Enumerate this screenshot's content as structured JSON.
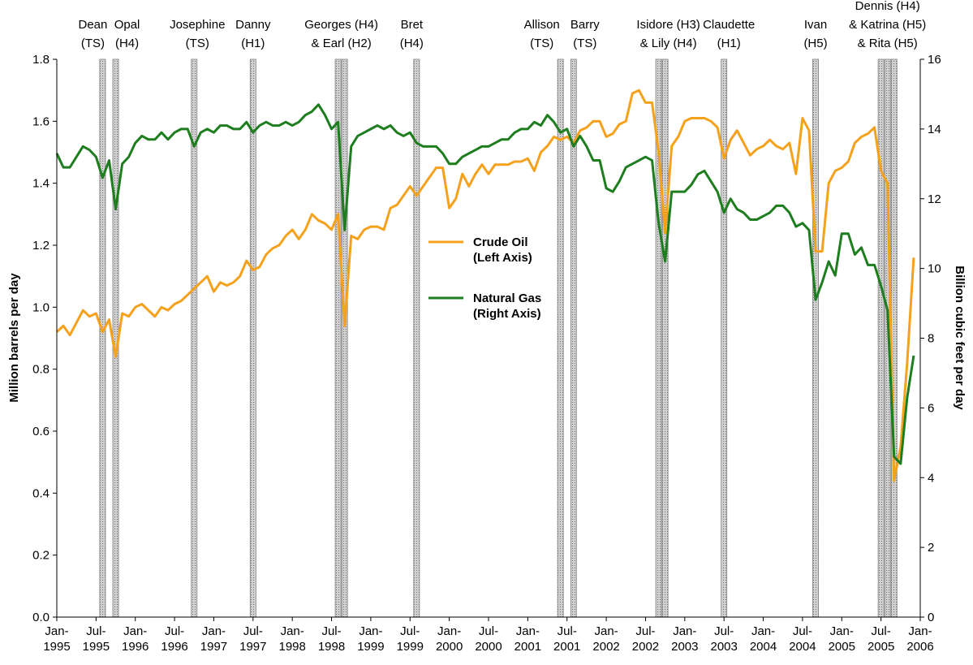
{
  "chart_data": {
    "type": "line",
    "y_label": "Million barrels per day",
    "y2_label": "Billion cubic feet per day",
    "xlim": [
      "1995-01",
      "2006-01"
    ],
    "xticks": [
      {
        "value": "1995-01",
        "label": "Jan-\n1995"
      },
      {
        "value": "1995-07",
        "label": "Jul-\n1995"
      },
      {
        "value": "1996-01",
        "label": "Jan-\n1996"
      },
      {
        "value": "1996-07",
        "label": "Jul-\n1996"
      },
      {
        "value": "1997-01",
        "label": "Jan-\n1997"
      },
      {
        "value": "1997-07",
        "label": "Jul-\n1997"
      },
      {
        "value": "1998-01",
        "label": "Jan-\n1998"
      },
      {
        "value": "1998-07",
        "label": "Jul-\n1998"
      },
      {
        "value": "1999-01",
        "label": "Jan-\n1999"
      },
      {
        "value": "1999-07",
        "label": "Jul-\n1999"
      },
      {
        "value": "2000-01",
        "label": "Jan-\n2000"
      },
      {
        "value": "2000-07",
        "label": "Jul-\n2000"
      },
      {
        "value": "2001-01",
        "label": "Jan-\n2001"
      },
      {
        "value": "2001-07",
        "label": "Jul-\n2001"
      },
      {
        "value": "2002-01",
        "label": "Jan-\n2002"
      },
      {
        "value": "2002-07",
        "label": "Jul-\n2002"
      },
      {
        "value": "2003-01",
        "label": "Jan-\n2003"
      },
      {
        "value": "2003-07",
        "label": "Jul-\n2003"
      },
      {
        "value": "2004-01",
        "label": "Jan-\n2004"
      },
      {
        "value": "2004-07",
        "label": "Jul-\n2004"
      },
      {
        "value": "2005-01",
        "label": "Jan-\n2005"
      },
      {
        "value": "2005-07",
        "label": "Jul-\n2005"
      },
      {
        "value": "2006-01",
        "label": "Jan-\n2006"
      }
    ],
    "ylim": [
      0,
      1.8
    ],
    "yticks": [
      {
        "value": 0,
        "label": "0.0"
      },
      0.2,
      0.4,
      0.6,
      0.8,
      {
        "value": 1,
        "label": "1.0"
      },
      1.2,
      1.4,
      1.6,
      1.8
    ],
    "y2lim": [
      0,
      16
    ],
    "y2ticks": [
      0,
      2,
      4,
      6,
      8,
      10,
      12,
      14,
      16
    ],
    "x": [
      "1995-01",
      "1995-02",
      "1995-03",
      "1995-04",
      "1995-05",
      "1995-06",
      "1995-07",
      "1995-08",
      "1995-09",
      "1995-10",
      "1995-11",
      "1995-12",
      "1996-01",
      "1996-02",
      "1996-03",
      "1996-04",
      "1996-05",
      "1996-06",
      "1996-07",
      "1996-08",
      "1996-09",
      "1996-10",
      "1996-11",
      "1996-12",
      "1997-01",
      "1997-02",
      "1997-03",
      "1997-04",
      "1997-05",
      "1997-06",
      "1997-07",
      "1997-08",
      "1997-09",
      "1997-10",
      "1997-11",
      "1997-12",
      "1998-01",
      "1998-02",
      "1998-03",
      "1998-04",
      "1998-05",
      "1998-06",
      "1998-07",
      "1998-08",
      "1998-09",
      "1998-10",
      "1998-11",
      "1998-12",
      "1999-01",
      "1999-02",
      "1999-03",
      "1999-04",
      "1999-05",
      "1999-06",
      "1999-07",
      "1999-08",
      "1999-09",
      "1999-10",
      "1999-11",
      "1999-12",
      "2000-01",
      "2000-02",
      "2000-03",
      "2000-04",
      "2000-05",
      "2000-06",
      "2000-07",
      "2000-08",
      "2000-09",
      "2000-10",
      "2000-11",
      "2000-12",
      "2001-01",
      "2001-02",
      "2001-03",
      "2001-04",
      "2001-05",
      "2001-06",
      "2001-07",
      "2001-08",
      "2001-09",
      "2001-10",
      "2001-11",
      "2001-12",
      "2002-01",
      "2002-02",
      "2002-03",
      "2002-04",
      "2002-05",
      "2002-06",
      "2002-07",
      "2002-08",
      "2002-09",
      "2002-10",
      "2002-11",
      "2002-12",
      "2003-01",
      "2003-02",
      "2003-03",
      "2003-04",
      "2003-05",
      "2003-06",
      "2003-07",
      "2003-08",
      "2003-09",
      "2003-10",
      "2003-11",
      "2003-12",
      "2004-01",
      "2004-02",
      "2004-03",
      "2004-04",
      "2004-05",
      "2004-06",
      "2004-07",
      "2004-08",
      "2004-09",
      "2004-10",
      "2004-11",
      "2004-12",
      "2005-01",
      "2005-02",
      "2005-03",
      "2005-04",
      "2005-05",
      "2005-06",
      "2005-07",
      "2005-08",
      "2005-09",
      "2005-10",
      "2005-11",
      "2005-12"
    ],
    "series": [
      {
        "name": "Crude Oil\n(Left Axis)",
        "color": "#f5a11c",
        "axis": "y",
        "values": [
          0.92,
          0.94,
          0.91,
          0.95,
          0.99,
          0.97,
          0.98,
          0.92,
          0.96,
          0.84,
          0.98,
          0.97,
          1.0,
          1.01,
          0.99,
          0.97,
          1.0,
          0.99,
          1.01,
          1.02,
          1.04,
          1.06,
          1.08,
          1.1,
          1.05,
          1.08,
          1.07,
          1.08,
          1.1,
          1.15,
          1.12,
          1.13,
          1.17,
          1.19,
          1.2,
          1.23,
          1.25,
          1.22,
          1.25,
          1.3,
          1.28,
          1.27,
          1.25,
          1.3,
          0.94,
          1.23,
          1.22,
          1.25,
          1.26,
          1.26,
          1.25,
          1.32,
          1.33,
          1.36,
          1.39,
          1.36,
          1.39,
          1.42,
          1.45,
          1.45,
          1.32,
          1.35,
          1.43,
          1.39,
          1.43,
          1.46,
          1.43,
          1.46,
          1.46,
          1.46,
          1.47,
          1.47,
          1.48,
          1.44,
          1.5,
          1.52,
          1.55,
          1.54,
          1.55,
          1.53,
          1.57,
          1.58,
          1.6,
          1.6,
          1.55,
          1.56,
          1.59,
          1.6,
          1.69,
          1.7,
          1.66,
          1.66,
          1.5,
          1.24,
          1.52,
          1.55,
          1.6,
          1.61,
          1.61,
          1.61,
          1.6,
          1.58,
          1.48,
          1.54,
          1.57,
          1.53,
          1.49,
          1.51,
          1.52,
          1.54,
          1.52,
          1.51,
          1.53,
          1.43,
          1.61,
          1.57,
          1.18,
          1.18,
          1.4,
          1.44,
          1.45,
          1.47,
          1.53,
          1.55,
          1.56,
          1.58,
          1.44,
          1.4,
          0.44,
          0.55,
          0.82,
          1.16
        ]
      },
      {
        "name": "Natural Gas\n(Right Axis)",
        "color": "#1e7d1e",
        "axis": "y2",
        "values": [
          13.3,
          12.9,
          12.9,
          13.2,
          13.5,
          13.4,
          13.2,
          12.6,
          13.1,
          11.7,
          13.0,
          13.2,
          13.6,
          13.8,
          13.7,
          13.7,
          13.9,
          13.7,
          13.9,
          14.0,
          14.0,
          13.5,
          13.9,
          14.0,
          13.9,
          14.1,
          14.1,
          14.0,
          14.0,
          14.2,
          13.9,
          14.1,
          14.2,
          14.1,
          14.1,
          14.2,
          14.1,
          14.2,
          14.4,
          14.5,
          14.7,
          14.4,
          14.0,
          14.2,
          11.1,
          13.5,
          13.8,
          13.9,
          14.0,
          14.1,
          14.0,
          14.1,
          13.9,
          13.8,
          13.9,
          13.6,
          13.5,
          13.5,
          13.5,
          13.3,
          13.0,
          13.0,
          13.2,
          13.3,
          13.4,
          13.5,
          13.5,
          13.6,
          13.7,
          13.7,
          13.9,
          14.0,
          14.0,
          14.2,
          14.1,
          14.4,
          14.2,
          13.9,
          14.0,
          13.5,
          13.8,
          13.5,
          13.1,
          13.1,
          12.3,
          12.2,
          12.5,
          12.9,
          13.0,
          13.1,
          13.2,
          13.1,
          11.3,
          10.2,
          12.2,
          12.2,
          12.2,
          12.4,
          12.7,
          12.8,
          12.5,
          12.2,
          11.6,
          12.0,
          11.7,
          11.6,
          11.4,
          11.4,
          11.5,
          11.6,
          11.8,
          11.8,
          11.6,
          11.2,
          11.3,
          11.1,
          9.1,
          9.6,
          10.2,
          9.8,
          11.0,
          11.0,
          10.4,
          10.6,
          10.1,
          10.1,
          9.5,
          8.8,
          4.6,
          4.4,
          6.3,
          7.5
        ]
      }
    ],
    "events": [
      {
        "label": [
          "Dean",
          "(TS)"
        ],
        "x": [
          "1995-08"
        ]
      },
      {
        "label": [
          "Opal",
          "(H4)"
        ],
        "x": [
          "1995-10"
        ]
      },
      {
        "label": [
          "Josephine",
          "(TS)"
        ],
        "x": [
          "1996-10"
        ]
      },
      {
        "label": [
          "Danny",
          "(H1)"
        ],
        "x": [
          "1997-07"
        ]
      },
      {
        "label": [
          "Georges (H4)",
          "& Earl (H2)"
        ],
        "x": [
          "1998-08",
          "1998-09"
        ]
      },
      {
        "label": [
          "Bret",
          "(H4)"
        ],
        "x": [
          "1999-08"
        ]
      },
      {
        "label": [
          "Allison",
          "(TS)"
        ],
        "x": [
          "2001-06"
        ]
      },
      {
        "label": [
          "Barry",
          "(TS)"
        ],
        "x": [
          "2001-08"
        ]
      },
      {
        "label": [
          "Isidore (H3)",
          "& Lily (H4)"
        ],
        "x": [
          "2002-09",
          "2002-10"
        ]
      },
      {
        "label": [
          "Claudette",
          "(H1)"
        ],
        "x": [
          "2003-07"
        ]
      },
      {
        "label": [
          "Ivan",
          "(H5)"
        ],
        "x": [
          "2004-09"
        ]
      },
      {
        "label": [
          "Dennis (H4)",
          "& Katrina (H5)",
          "& Rita (H5)"
        ],
        "x": [
          "2005-07",
          "2005-08",
          "2005-09"
        ]
      }
    ]
  }
}
